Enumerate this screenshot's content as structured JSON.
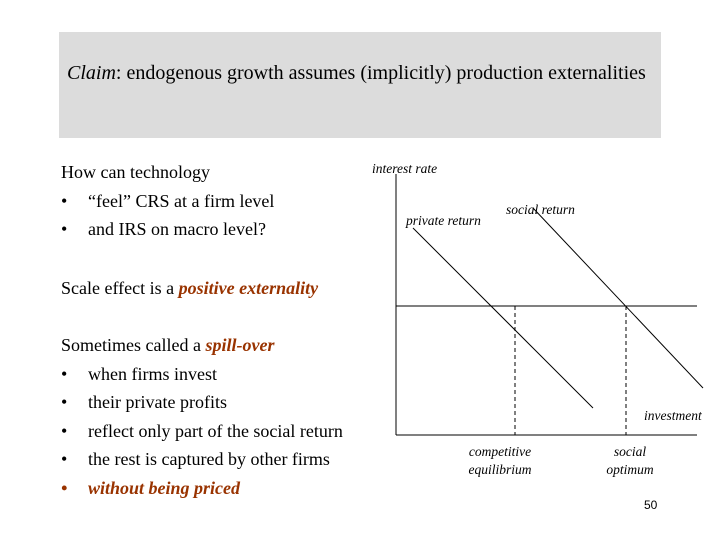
{
  "header": {
    "claim_label": "Claim",
    "claim_text": ": endogenous growth assumes (implicitly) production externalities"
  },
  "intro": {
    "question": "How can technology",
    "bullets": [
      "“feel” CRS at a firm level",
      "and IRS on macro level?"
    ]
  },
  "scale_effect": {
    "text": "Scale effect is a ",
    "highlight": "positive externality"
  },
  "spillover": {
    "text": "Sometimes called a ",
    "highlight": "spill-over",
    "bullets": [
      "when firms invest",
      "their private profits",
      "reflect only part of the social return",
      "the rest is captured by other firms"
    ],
    "last_bullet": "without being priced"
  },
  "diagram": {
    "y_axis_label": "interest rate",
    "x_axis_label": "investment",
    "private_return_label": "private return",
    "social_return_label": "social return",
    "competitive_label": [
      "competitive",
      "equilibrium"
    ],
    "optimum_label": [
      "social",
      "optimum"
    ],
    "colors": {
      "accent": "#993300",
      "header_bg": "#dcdcdc"
    }
  },
  "page_number": "50"
}
